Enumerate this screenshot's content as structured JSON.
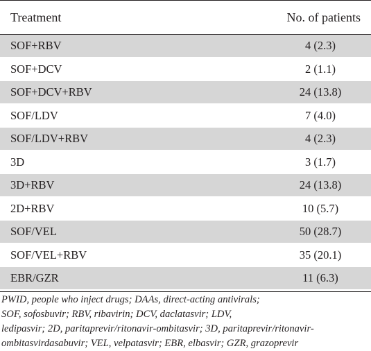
{
  "table": {
    "header": {
      "treatment": "Treatment",
      "patients": "No. of patients"
    },
    "rows": [
      {
        "treatment": "SOF+RBV",
        "patients": "4 (2.3)"
      },
      {
        "treatment": "SOF+DCV",
        "patients": "2 (1.1)"
      },
      {
        "treatment": "SOF+DCV+RBV",
        "patients": "24 (13.8)"
      },
      {
        "treatment": "SOF/LDV",
        "patients": "7 (4.0)"
      },
      {
        "treatment": "SOF/LDV+RBV",
        "patients": "4 (2.3)"
      },
      {
        "treatment": "3D",
        "patients": "3 (1.7)"
      },
      {
        "treatment": "3D+RBV",
        "patients": "24 (13.8)"
      },
      {
        "treatment": "2D+RBV",
        "patients": "10 (5.7)"
      },
      {
        "treatment": "SOF/VEL",
        "patients": "50 (28.7)"
      },
      {
        "treatment": "SOF/VEL+RBV",
        "patients": "35 (20.1)"
      },
      {
        "treatment": "EBR/GZR",
        "patients": "11 (6.3)"
      }
    ]
  },
  "footnote": {
    "lines": [
      "PWID, people who inject drugs; DAAs, direct-acting antivirals;",
      "SOF, sofosbuvir; RBV, ribavirin; DCV, daclatasvir; LDV,",
      "ledipasvir; 2D, paritaprevir/ritonavir-ombitasvir; 3D, paritaprevir/ritonavir-",
      "ombitasvirdasabuvir; VEL, velpatasvir; EBR, elbasvir; GZR, grazoprevir"
    ]
  },
  "colors": {
    "row_shade": "#d6d6d6",
    "text": "#231f20"
  }
}
